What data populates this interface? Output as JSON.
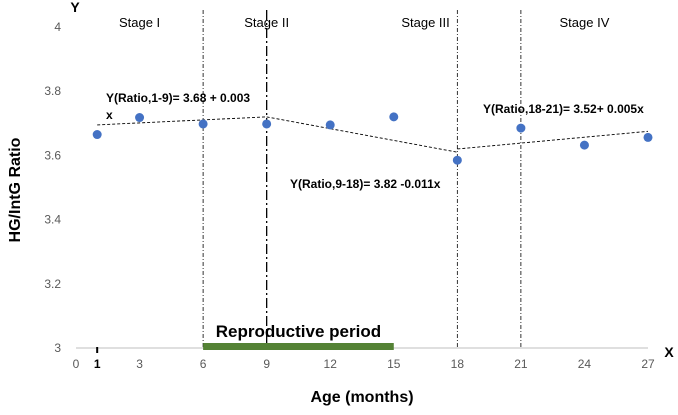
{
  "chart_data": {
    "type": "scatter",
    "xlabel": "Age (months)",
    "ylabel": "HG/IntG Ratio",
    "x_axis_letter": "X",
    "y_axis_letter": "Y",
    "xlim": [
      0,
      27
    ],
    "ylim": [
      3,
      4
    ],
    "x_ticks": [
      0,
      3,
      6,
      9,
      12,
      15,
      18,
      21,
      24,
      27
    ],
    "y_ticks": [
      3,
      3.2,
      3.4,
      3.6,
      3.8,
      4
    ],
    "y_tick_labels": [
      "3",
      "3.2",
      "3.4",
      "3.6",
      "3.8",
      "4"
    ],
    "marked_x": {
      "value": 1,
      "label": "1"
    },
    "series": [
      {
        "name": "HG/IntG Ratio",
        "x": [
          1,
          3,
          6,
          9,
          12,
          15,
          18,
          21,
          24,
          27
        ],
        "y": [
          3.665,
          3.718,
          3.698,
          3.698,
          3.695,
          3.72,
          3.585,
          3.685,
          3.632,
          3.656
        ],
        "color": "#4472C4"
      }
    ],
    "stage_boundaries": [
      6,
      9,
      18,
      21
    ],
    "stages": [
      {
        "label": "Stage I",
        "x": 3
      },
      {
        "label": "Stage II",
        "x": 9
      },
      {
        "label": "Stage III",
        "x": 16.5
      },
      {
        "label": "Stage IV",
        "x": 24
      }
    ],
    "fit_lines": [
      {
        "x1": 1,
        "y1": 3.695,
        "x2": 9,
        "y2": 3.72
      },
      {
        "x1": 9,
        "y1": 3.72,
        "x2": 18,
        "y2": 3.61
      },
      {
        "x1": 18,
        "y1": 3.62,
        "x2": 27,
        "y2": 3.675
      }
    ],
    "equations": [
      {
        "line1": "Y(Ratio,1-9)= 3.68 + 0.003",
        "line2": "x"
      },
      {
        "line1": "Y(Ratio,9-18)= 3.82 -0.011x"
      },
      {
        "line1": "Y(Ratio,18-21)= 3.52+ 0.005x"
      }
    ],
    "reproductive_period": {
      "label": "Reproductive period",
      "x_start": 6,
      "x_end": 15,
      "color": "#548235"
    }
  }
}
